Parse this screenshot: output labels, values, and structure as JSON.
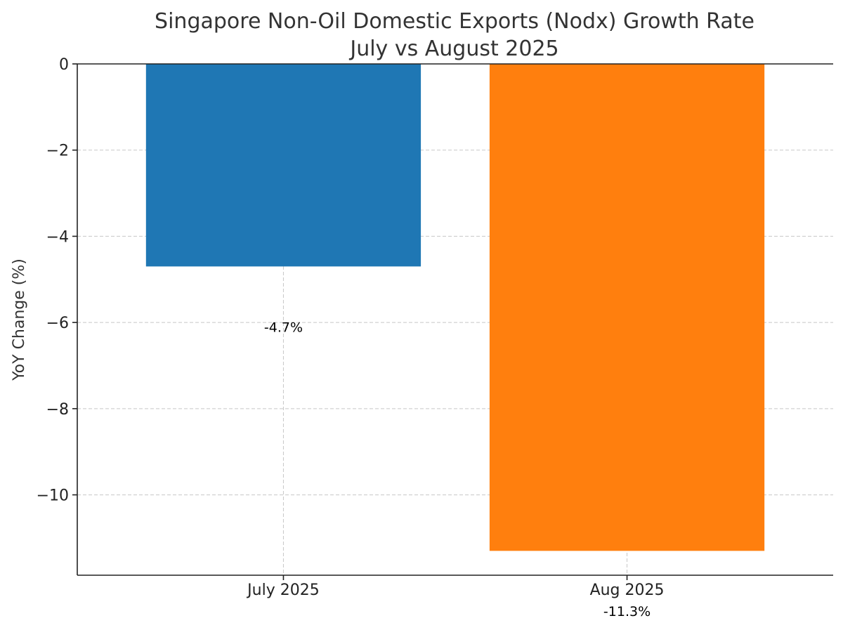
{
  "chart_data": {
    "type": "bar",
    "title": "Singapore Non-Oil Domestic Exports (Nodx) Growth Rate",
    "subtitle": "July vs August 2025",
    "xlabel": "",
    "ylabel": "YoY Change (%)",
    "categories": [
      "July 2025",
      "Aug 2025"
    ],
    "values": [
      -4.7,
      -11.3
    ],
    "colors": [
      "#1f77b4",
      "#ff7f0e"
    ],
    "data_labels": [
      "-4.7%",
      "-11.3%"
    ],
    "ylim": [
      -11.865,
      0
    ],
    "yticks": [
      0,
      -2,
      -4,
      -6,
      -8,
      -10
    ],
    "ytick_labels": [
      "0",
      "−2",
      "−4",
      "−6",
      "−8",
      "−10"
    ],
    "grid": true,
    "legend": "none"
  }
}
